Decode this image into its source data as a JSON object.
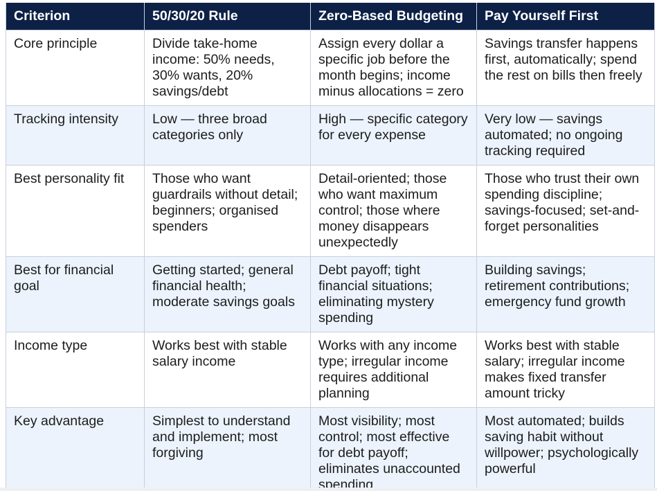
{
  "header": {
    "criterion": "Criterion",
    "col1": "50/30/20 Rule",
    "col2": "Zero-Based Budgeting",
    "col3": "Pay Yourself First"
  },
  "rows": [
    {
      "criterion": "Core principle",
      "c1": "Divide take-home income: 50% needs, 30% wants, 20% savings/debt",
      "c2": "Assign every dollar a specific job before the month begins; income minus allocations = zero",
      "c3": "Savings transfer happens first, automatically; spend the rest on bills then freely"
    },
    {
      "criterion": "Tracking intensity",
      "c1": "Low — three broad categories only",
      "c2": "High — specific category for every expense",
      "c3": "Very low — savings automated; no ongoing tracking required"
    },
    {
      "criterion": "Best personality fit",
      "c1": "Those who want guardrails without detail; beginners; organised spenders",
      "c2": "Detail-oriented; those who want maximum control; those where money disappears unexpectedly",
      "c3": "Those who trust their own spending discipline; savings-focused; set-and-forget personalities"
    },
    {
      "criterion": "Best for financial goal",
      "c1": "Getting started; general financial health; moderate savings goals",
      "c2": "Debt payoff; tight financial situations; eliminating mystery spending",
      "c3": "Building savings; retirement contributions; emergency fund growth"
    },
    {
      "criterion": "Income type",
      "c1": "Works best with stable salary income",
      "c2": "Works with any income type; irregular income requires additional planning",
      "c3": "Works best with stable salary; irregular income makes fixed transfer amount tricky"
    },
    {
      "criterion": "Key advantage",
      "c1": "Simplest to understand and implement; most forgiving",
      "c2": "Most visibility; most control; most effective for debt payoff; eliminates unaccounted spending",
      "c3": "Most automated; builds saving habit without willpower; psychologically powerful"
    }
  ],
  "colors": {
    "header_bg": "#0d2147",
    "header_text": "#ffffff",
    "row_alt_bg": "#ecf3fd",
    "border": "#c8cfda"
  }
}
